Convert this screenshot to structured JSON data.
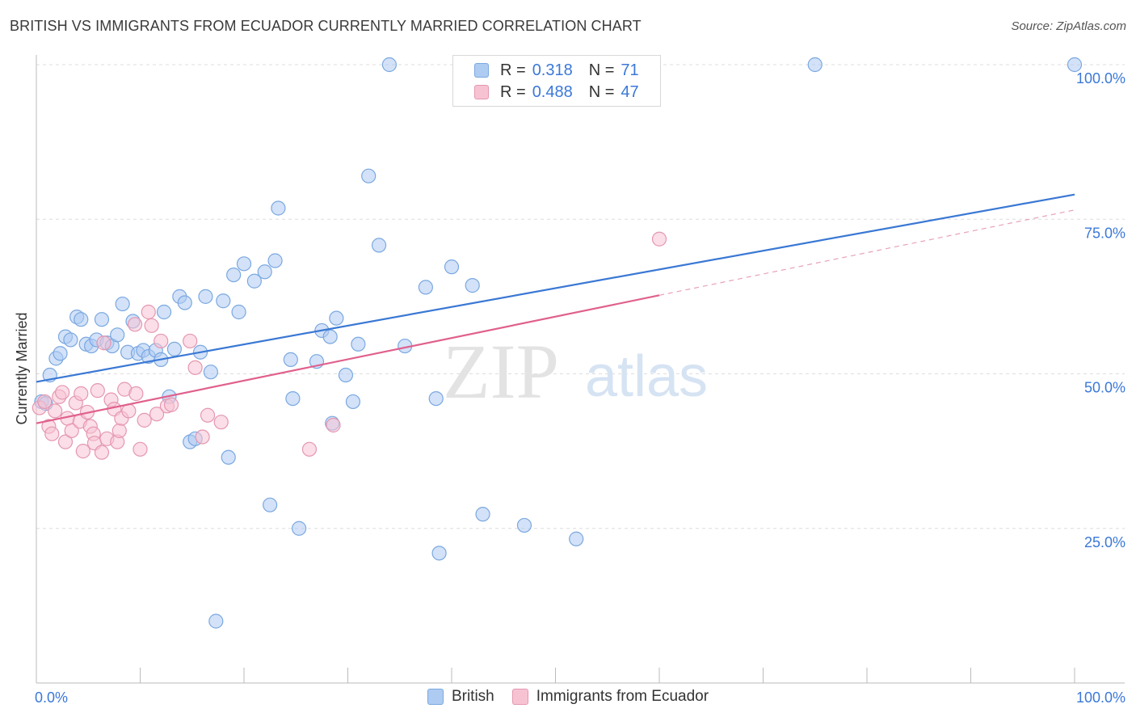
{
  "header": {
    "title": "BRITISH VS IMMIGRANTS FROM ECUADOR CURRENTLY MARRIED CORRELATION CHART",
    "source": "Source: ZipAtlas.com"
  },
  "watermark": {
    "zip": "ZIP",
    "atlas": "atlas"
  },
  "legend_stats": [
    {
      "r_key": "R =",
      "r_value": "0.318",
      "n_key": "N =",
      "n_value": "71",
      "color": "#aecbf2",
      "border": "#7aa8e0"
    },
    {
      "r_key": "R =",
      "r_value": "0.488",
      "n_key": "N =",
      "n_value": "47",
      "color": "#f7c3d3",
      "border": "#e597b0"
    }
  ],
  "chart_data": {
    "type": "scatter",
    "title": "BRITISH VS IMMIGRANTS FROM ECUADOR CURRENTLY MARRIED CORRELATION CHART",
    "xlabel": "",
    "ylabel": "Currently Married",
    "xlim": [
      0,
      100
    ],
    "ylim": [
      0,
      100
    ],
    "x_tick_labels": [
      "0.0%",
      "100.0%"
    ],
    "y_ticks": [
      25,
      50,
      75,
      100
    ],
    "y_tick_labels": [
      "25.0%",
      "50.0%",
      "75.0%",
      "100.0%"
    ],
    "grid": true,
    "legend_position": "bottom",
    "series": [
      {
        "name": "British",
        "color": "#3a78d4",
        "fill": "#aecbf2",
        "trend": {
          "x0": 0,
          "y0": 48.7,
          "x1": 100,
          "y1": 79.0
        },
        "points": [
          [
            0.5,
            45.5
          ],
          [
            0.9,
            45.2
          ],
          [
            1.3,
            49.8
          ],
          [
            1.9,
            52.5
          ],
          [
            2.3,
            53.3
          ],
          [
            2.8,
            56.0
          ],
          [
            3.3,
            55.5
          ],
          [
            3.9,
            59.2
          ],
          [
            4.3,
            58.8
          ],
          [
            4.8,
            54.8
          ],
          [
            5.3,
            54.5
          ],
          [
            5.8,
            55.5
          ],
          [
            6.3,
            58.8
          ],
          [
            6.8,
            55.0
          ],
          [
            7.3,
            54.5
          ],
          [
            7.8,
            56.3
          ],
          [
            8.3,
            61.3
          ],
          [
            8.8,
            53.5
          ],
          [
            9.3,
            58.5
          ],
          [
            9.8,
            53.3
          ],
          [
            10.3,
            53.8
          ],
          [
            10.8,
            52.8
          ],
          [
            11.5,
            53.8
          ],
          [
            12.0,
            52.3
          ],
          [
            12.3,
            60.0
          ],
          [
            12.8,
            46.3
          ],
          [
            13.3,
            54.0
          ],
          [
            13.8,
            62.5
          ],
          [
            14.3,
            61.5
          ],
          [
            14.8,
            39.0
          ],
          [
            15.3,
            39.5
          ],
          [
            15.8,
            53.5
          ],
          [
            16.3,
            62.5
          ],
          [
            16.8,
            50.3
          ],
          [
            17.3,
            10.0
          ],
          [
            18.0,
            61.8
          ],
          [
            18.5,
            36.5
          ],
          [
            19.0,
            66.0
          ],
          [
            19.5,
            60.0
          ],
          [
            20.0,
            67.8
          ],
          [
            21.0,
            65.0
          ],
          [
            22.0,
            66.5
          ],
          [
            22.5,
            28.8
          ],
          [
            23.0,
            68.3
          ],
          [
            23.3,
            76.8
          ],
          [
            24.5,
            52.3
          ],
          [
            24.7,
            46.0
          ],
          [
            25.3,
            25.0
          ],
          [
            27.0,
            52.0
          ],
          [
            27.5,
            57.0
          ],
          [
            28.3,
            56.0
          ],
          [
            28.5,
            42.0
          ],
          [
            28.9,
            59.0
          ],
          [
            29.8,
            49.8
          ],
          [
            30.5,
            45.5
          ],
          [
            31.0,
            54.8
          ],
          [
            32.0,
            82.0
          ],
          [
            33.0,
            70.8
          ],
          [
            34.0,
            100.0
          ],
          [
            35.5,
            54.5
          ],
          [
            37.5,
            64.0
          ],
          [
            38.5,
            46.0
          ],
          [
            38.8,
            21.0
          ],
          [
            40.0,
            67.3
          ],
          [
            42.0,
            64.3
          ],
          [
            43.0,
            27.3
          ],
          [
            47.0,
            25.5
          ],
          [
            52.0,
            23.3
          ],
          [
            75.0,
            100.0
          ],
          [
            100.0,
            100.0
          ],
          [
            49.0,
            94.5
          ]
        ]
      },
      {
        "name": "Immigrants from Ecuador",
        "color": "#e0608c",
        "fill": "#f7c3d3",
        "trend": {
          "x0": 0,
          "y0": 42.0,
          "x1": 60,
          "y1": 62.7,
          "dash_x1": 100,
          "dash_y1": 76.5
        },
        "points": [
          [
            0.3,
            44.5
          ],
          [
            0.8,
            45.5
          ],
          [
            1.2,
            41.5
          ],
          [
            1.5,
            40.3
          ],
          [
            1.8,
            44.0
          ],
          [
            2.2,
            46.3
          ],
          [
            2.5,
            47.0
          ],
          [
            2.8,
            39.0
          ],
          [
            3.0,
            42.8
          ],
          [
            3.4,
            40.8
          ],
          [
            3.8,
            45.3
          ],
          [
            4.2,
            42.3
          ],
          [
            4.3,
            46.8
          ],
          [
            4.5,
            37.5
          ],
          [
            4.9,
            43.8
          ],
          [
            5.2,
            41.5
          ],
          [
            5.5,
            40.3
          ],
          [
            5.6,
            38.8
          ],
          [
            5.9,
            47.3
          ],
          [
            6.3,
            37.3
          ],
          [
            6.5,
            55.0
          ],
          [
            6.8,
            39.5
          ],
          [
            7.2,
            45.8
          ],
          [
            7.5,
            44.3
          ],
          [
            7.8,
            39.0
          ],
          [
            8.0,
            40.8
          ],
          [
            8.2,
            42.8
          ],
          [
            8.5,
            47.5
          ],
          [
            8.9,
            44.0
          ],
          [
            9.5,
            58.0
          ],
          [
            9.6,
            46.8
          ],
          [
            10.0,
            37.8
          ],
          [
            10.4,
            42.5
          ],
          [
            10.8,
            60.0
          ],
          [
            11.1,
            57.8
          ],
          [
            11.6,
            43.5
          ],
          [
            12.0,
            55.3
          ],
          [
            12.6,
            44.8
          ],
          [
            14.8,
            55.3
          ],
          [
            15.3,
            51.0
          ],
          [
            16.0,
            39.8
          ],
          [
            16.5,
            43.3
          ],
          [
            17.8,
            42.2
          ],
          [
            26.3,
            37.8
          ],
          [
            28.6,
            41.7
          ],
          [
            60.0,
            71.8
          ],
          [
            13.0,
            45.0
          ]
        ]
      }
    ]
  },
  "legend_bottom": [
    {
      "label": "British",
      "color": "#aecbf2",
      "border": "#7aa8e0"
    },
    {
      "label": "Immigrants from Ecuador",
      "color": "#f7c3d3",
      "border": "#e597b0"
    }
  ]
}
